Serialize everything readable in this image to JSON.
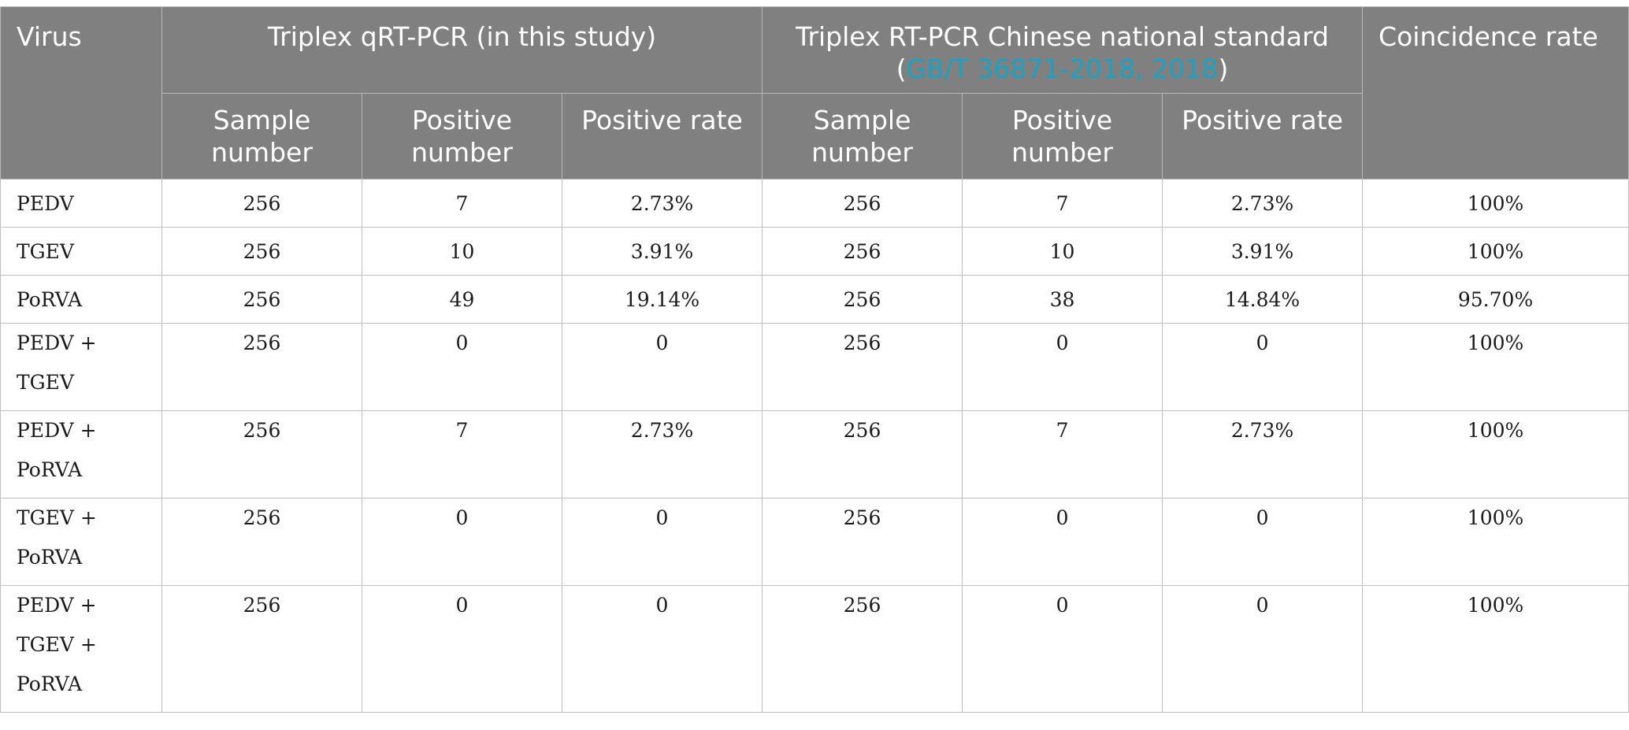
{
  "table": {
    "header": {
      "virus": "Virus",
      "group1": "Triplex qRT-PCR (in this study)",
      "group2_text": "Triplex RT-PCR Chinese national standard",
      "group2_open": "(",
      "group2_link": "GB/T 36871-2018, 2018",
      "group2_close": ")",
      "coincidence": "Coincidence rate",
      "sample_number": "Sample number",
      "positive_number": "Positive number",
      "positive_rate": "Positive rate"
    },
    "rows": [
      {
        "virus": [
          "PEDV"
        ],
        "s1": "256",
        "p1": "7",
        "r1": "2.73%",
        "s2": "256",
        "p2": "7",
        "r2": "2.73%",
        "coincidence": "100%"
      },
      {
        "virus": [
          "TGEV"
        ],
        "s1": "256",
        "p1": "10",
        "r1": "3.91%",
        "s2": "256",
        "p2": "10",
        "r2": "3.91%",
        "coincidence": "100%"
      },
      {
        "virus": [
          "PoRVA"
        ],
        "s1": "256",
        "p1": "49",
        "r1": "19.14%",
        "s2": "256",
        "p2": "38",
        "r2": "14.84%",
        "coincidence": "95.70%"
      },
      {
        "virus": [
          "PEDV +",
          "TGEV"
        ],
        "s1": "256",
        "p1": "0",
        "r1": "0",
        "s2": "256",
        "p2": "0",
        "r2": "0",
        "coincidence": "100%"
      },
      {
        "virus": [
          "PEDV +",
          "PoRVA"
        ],
        "s1": "256",
        "p1": "7",
        "r1": "2.73%",
        "s2": "256",
        "p2": "7",
        "r2": "2.73%",
        "coincidence": "100%"
      },
      {
        "virus": [
          "TGEV +",
          "PoRVA"
        ],
        "s1": "256",
        "p1": "0",
        "r1": "0",
        "s2": "256",
        "p2": "0",
        "r2": "0",
        "coincidence": "100%"
      },
      {
        "virus": [
          "PEDV +",
          "TGEV +",
          "PoRVA"
        ],
        "s1": "256",
        "p1": "0",
        "r1": "0",
        "s2": "256",
        "p2": "0",
        "r2": "0",
        "coincidence": "100%"
      }
    ]
  },
  "colors": {
    "header_bg": "#808080",
    "header_text": "#ffffff",
    "link": "#1aa2c4",
    "border": "#bfbfbf"
  }
}
